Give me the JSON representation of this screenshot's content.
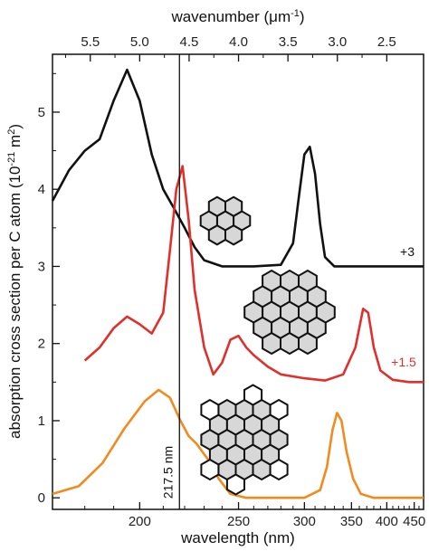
{
  "chart_data": {
    "type": "line",
    "title": "",
    "xlabel": "wavelength (nm)",
    "x2label": "wavenumber (μm",
    "x2label_sup": "-1",
    "x2label_suffix": ")",
    "ylabel": "absorption cross section per C atom (10",
    "ylabel_sup": "-21",
    "ylabel_mid": " m",
    "ylabel_sup2": "2",
    "ylabel_suffix": ")",
    "x_scale": "reciprocal",
    "xlim": [
      170,
      470
    ],
    "ylim": [
      -0.15,
      5.75
    ],
    "x_ticks": [
      200,
      250,
      300,
      350,
      400,
      450
    ],
    "x_tick_labels": [
      "200",
      "250",
      "300",
      "350",
      "400",
      "450"
    ],
    "x_minor_ticks": [
      180,
      190,
      210,
      220,
      230,
      240,
      260,
      270,
      280,
      290,
      310,
      320,
      330,
      340,
      360,
      370,
      380,
      390,
      410,
      420,
      430,
      440,
      460
    ],
    "x2_ticks": [
      5.5,
      5.0,
      4.5,
      4.0,
      3.5,
      3.0,
      2.5
    ],
    "x2_tick_labels": [
      "5.5",
      "5.0",
      "4.5",
      "4.0",
      "3.5",
      "3.0",
      "2.5"
    ],
    "y_ticks": [
      0,
      1,
      2,
      3,
      4,
      5
    ],
    "y_tick_labels": [
      "0",
      "1",
      "2",
      "3",
      "4",
      "5"
    ],
    "grid": false,
    "vline": {
      "x": 217.5,
      "label": "217.5 nm"
    },
    "series": [
      {
        "color": "#111111",
        "offset_label": "+3",
        "points": [
          [
            170,
            3.85
          ],
          [
            175,
            4.25
          ],
          [
            180,
            4.5
          ],
          [
            185,
            4.65
          ],
          [
            190,
            5.15
          ],
          [
            195,
            5.55
          ],
          [
            200,
            5.15
          ],
          [
            205,
            4.45
          ],
          [
            210,
            4.0
          ],
          [
            215,
            3.75
          ],
          [
            220,
            3.5
          ],
          [
            225,
            3.25
          ],
          [
            230,
            3.08
          ],
          [
            240,
            3.0
          ],
          [
            260,
            3.0
          ],
          [
            280,
            3.02
          ],
          [
            290,
            3.3
          ],
          [
            295,
            3.9
          ],
          [
            300,
            4.45
          ],
          [
            305,
            4.55
          ],
          [
            310,
            4.2
          ],
          [
            315,
            3.55
          ],
          [
            320,
            3.12
          ],
          [
            330,
            3.0
          ],
          [
            400,
            3.0
          ],
          [
            470,
            3.0
          ]
        ]
      },
      {
        "color": "#e0302b",
        "offset_label": "+1.5",
        "points": [
          [
            180,
            1.78
          ],
          [
            185,
            1.95
          ],
          [
            190,
            2.2
          ],
          [
            195,
            2.35
          ],
          [
            200,
            2.25
          ],
          [
            205,
            2.13
          ],
          [
            210,
            2.4
          ],
          [
            213,
            3.2
          ],
          [
            216,
            4.0
          ],
          [
            219,
            4.3
          ],
          [
            222,
            3.6
          ],
          [
            225,
            2.7
          ],
          [
            230,
            1.95
          ],
          [
            235,
            1.6
          ],
          [
            240,
            1.75
          ],
          [
            245,
            2.05
          ],
          [
            250,
            2.1
          ],
          [
            255,
            1.95
          ],
          [
            260,
            1.85
          ],
          [
            270,
            1.7
          ],
          [
            280,
            1.6
          ],
          [
            300,
            1.55
          ],
          [
            320,
            1.52
          ],
          [
            340,
            1.6
          ],
          [
            355,
            1.95
          ],
          [
            365,
            2.45
          ],
          [
            372,
            2.4
          ],
          [
            380,
            1.95
          ],
          [
            390,
            1.65
          ],
          [
            410,
            1.53
          ],
          [
            440,
            1.5
          ],
          [
            470,
            1.5
          ]
        ]
      },
      {
        "color": "#f28a1e",
        "offset_label": "",
        "points": [
          [
            170,
            0.05
          ],
          [
            178,
            0.15
          ],
          [
            186,
            0.45
          ],
          [
            194,
            0.9
          ],
          [
            202,
            1.25
          ],
          [
            208,
            1.4
          ],
          [
            213,
            1.3
          ],
          [
            218,
            1.0
          ],
          [
            222,
            0.8
          ],
          [
            226,
            0.7
          ],
          [
            232,
            0.5
          ],
          [
            238,
            0.25
          ],
          [
            245,
            0.05
          ],
          [
            255,
            0.0
          ],
          [
            300,
            0.0
          ],
          [
            315,
            0.1
          ],
          [
            322,
            0.4
          ],
          [
            328,
            0.88
          ],
          [
            333,
            1.1
          ],
          [
            338,
            1.0
          ],
          [
            344,
            0.6
          ],
          [
            352,
            0.25
          ],
          [
            362,
            0.05
          ],
          [
            380,
            0.0
          ],
          [
            470,
            0.0
          ]
        ]
      }
    ],
    "label_colors": {
      "black": "#111111",
      "red": "#e0302b",
      "orange": "#f28a1e"
    }
  }
}
